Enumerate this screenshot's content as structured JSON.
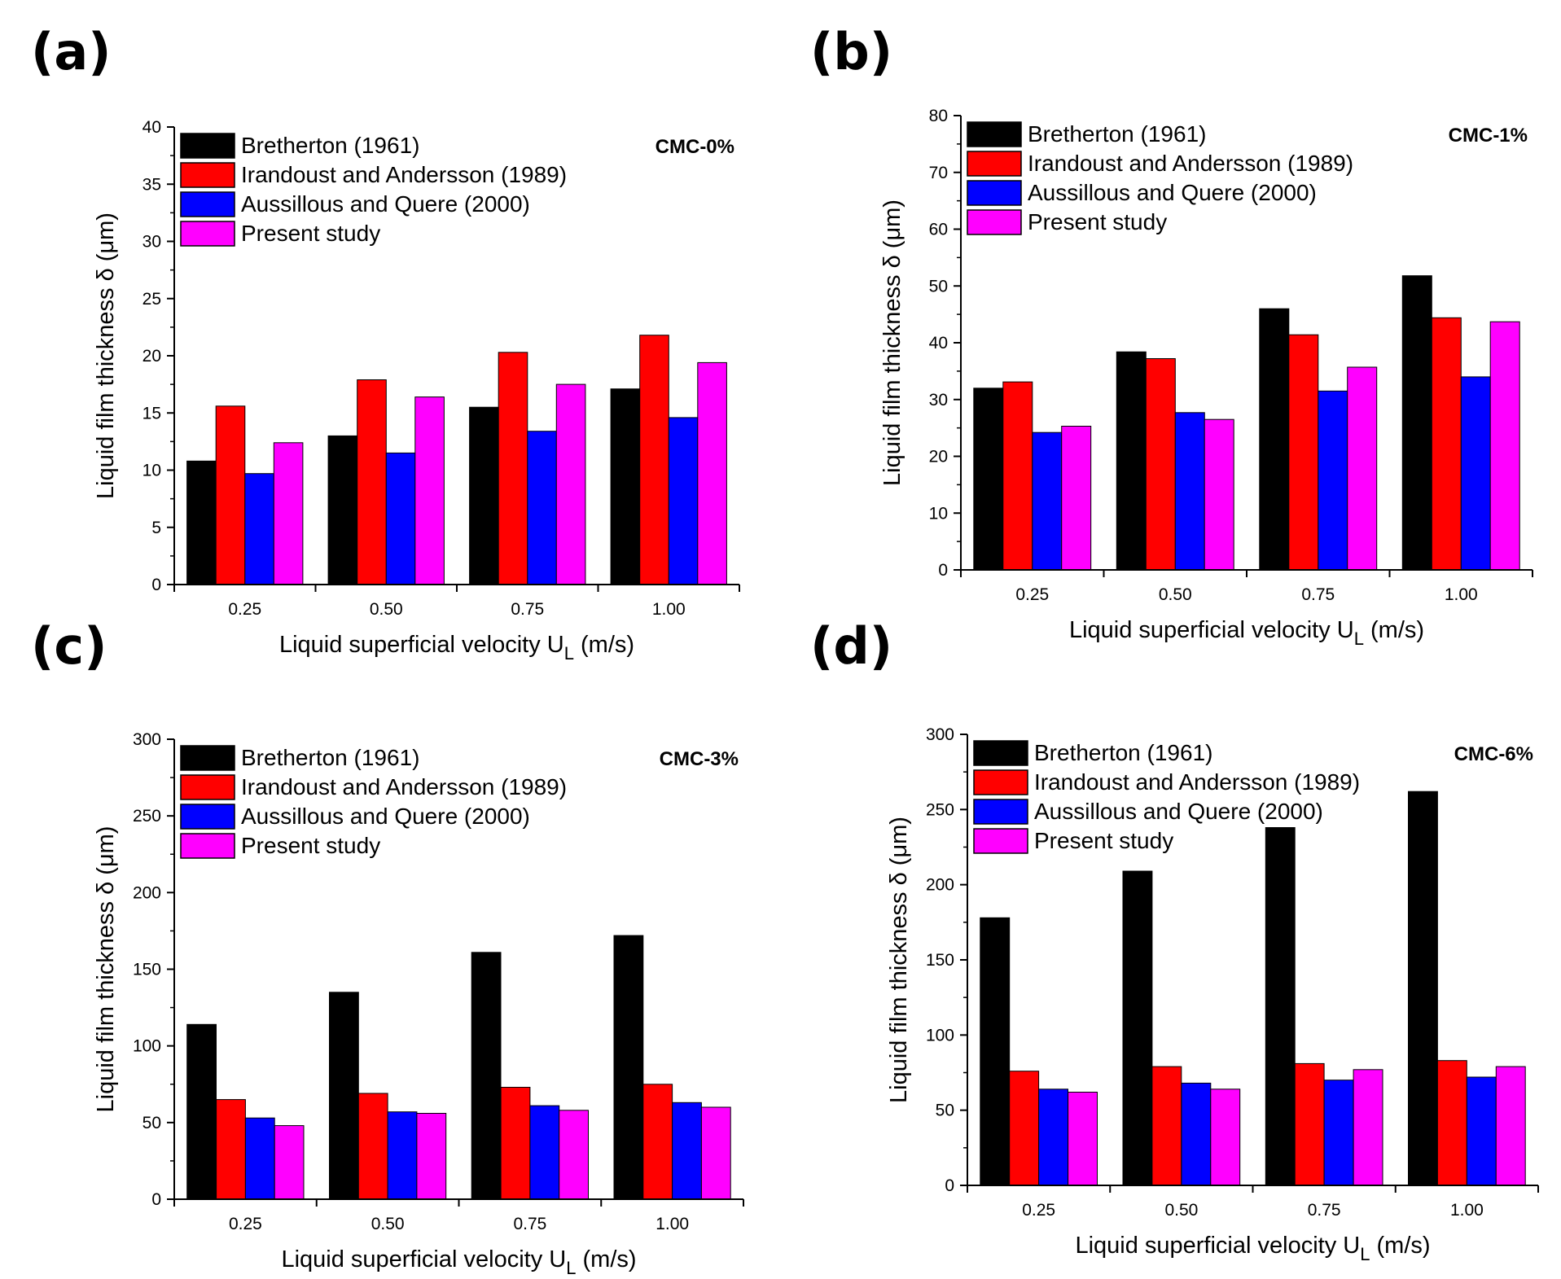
{
  "chart_data": [
    {
      "panel_label": "(a)",
      "type": "bar",
      "tag": "CMC-0%",
      "categories": [
        "0.25",
        "0.50",
        "0.75",
        "1.00"
      ],
      "ylim": [
        0,
        40
      ],
      "yticks": [
        "0",
        "5",
        "10",
        "15",
        "20",
        "25",
        "30",
        "35",
        "40"
      ],
      "xlabel": "Liquid  superficial velocity U",
      "xlabel_sub": "L",
      "xlabel_unit": " (m/s)",
      "ylabel": "Liquid film thickness δ (μm)",
      "series": [
        {
          "name": "Bretherton (1961)",
          "color": "#000000",
          "values": [
            10.8,
            13.0,
            15.5,
            17.1
          ]
        },
        {
          "name": "Irandoust and Andersson (1989)",
          "color": "#ff0000",
          "values": [
            15.6,
            17.9,
            20.3,
            21.8
          ]
        },
        {
          "name": "Aussillous and Quere (2000)",
          "color": "#0000ff",
          "values": [
            9.7,
            11.5,
            13.4,
            14.6
          ]
        },
        {
          "name": "Present study",
          "color": "#ff00ff",
          "values": [
            12.4,
            16.4,
            17.5,
            19.4
          ]
        }
      ]
    },
    {
      "panel_label": "(b)",
      "type": "bar",
      "tag": "CMC-1%",
      "categories": [
        "0.25",
        "0.50",
        "0.75",
        "1.00"
      ],
      "ylim": [
        0,
        80
      ],
      "yticks": [
        "0",
        "10",
        "20",
        "30",
        "40",
        "50",
        "60",
        "70",
        "80"
      ],
      "xlabel": "Liquid  superficial velocity U",
      "xlabel_sub": "L",
      "xlabel_unit": " (m/s)",
      "ylabel": "Liquid film thickness δ (μm)",
      "series": [
        {
          "name": "Bretherton (1961)",
          "color": "#000000",
          "values": [
            32.0,
            38.4,
            46.0,
            51.8
          ]
        },
        {
          "name": "Irandoust and Andersson (1989)",
          "color": "#ff0000",
          "values": [
            33.1,
            37.2,
            41.4,
            44.4
          ]
        },
        {
          "name": "Aussillous and Quere (2000)",
          "color": "#0000ff",
          "values": [
            24.2,
            27.7,
            31.5,
            34.0
          ]
        },
        {
          "name": "Present study",
          "color": "#ff00ff",
          "values": [
            25.3,
            26.5,
            35.7,
            43.7
          ]
        }
      ]
    },
    {
      "panel_label": "(c)",
      "type": "bar",
      "tag": "CMC-3%",
      "categories": [
        "0.25",
        "0.50",
        "0.75",
        "1.00"
      ],
      "ylim": [
        0,
        300
      ],
      "yticks": [
        "0",
        "50",
        "100",
        "150",
        "200",
        "250",
        "300"
      ],
      "xlabel": "Liquid  superficial velocity U",
      "xlabel_sub": "L",
      "xlabel_unit": " (m/s)",
      "ylabel": "Liquid film thickness δ (μm)",
      "series": [
        {
          "name": "Bretherton (1961)",
          "color": "#000000",
          "values": [
            114,
            135,
            161,
            172
          ]
        },
        {
          "name": "Irandoust and Andersson (1989)",
          "color": "#ff0000",
          "values": [
            65,
            69,
            73,
            75
          ]
        },
        {
          "name": "Aussillous and Quere (2000)",
          "color": "#0000ff",
          "values": [
            53,
            57,
            61,
            63
          ]
        },
        {
          "name": "Present study",
          "color": "#ff00ff",
          "values": [
            48,
            56,
            58,
            60
          ]
        }
      ]
    },
    {
      "panel_label": "(d)",
      "type": "bar",
      "tag": "CMC-6%",
      "categories": [
        "0.25",
        "0.50",
        "0.75",
        "1.00"
      ],
      "ylim": [
        0,
        300
      ],
      "yticks": [
        "0",
        "50",
        "100",
        "150",
        "200",
        "250",
        "300"
      ],
      "xlabel": "Liquid  superficial velocity U",
      "xlabel_sub": "L",
      "xlabel_unit": " (m/s)",
      "ylabel": "Liquid film thickness δ (μm)",
      "series": [
        {
          "name": "Bretherton (1961)",
          "color": "#000000",
          "values": [
            178,
            209,
            238,
            262
          ]
        },
        {
          "name": "Irandoust and Andersson (1989)",
          "color": "#ff0000",
          "values": [
            76,
            79,
            81,
            83
          ]
        },
        {
          "name": "Aussillous and Quere (2000)",
          "color": "#0000ff",
          "values": [
            64,
            68,
            70,
            72
          ]
        },
        {
          "name": "Present study",
          "color": "#ff00ff",
          "values": [
            62,
            64,
            77,
            79
          ]
        }
      ]
    }
  ]
}
